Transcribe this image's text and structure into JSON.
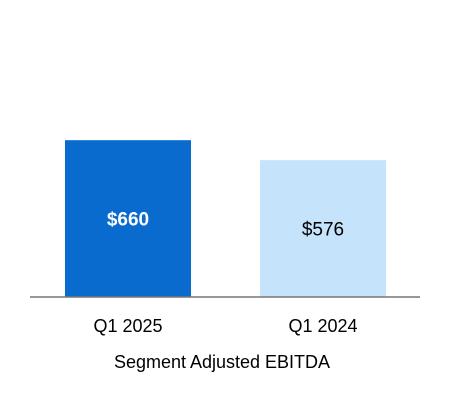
{
  "chart_data": {
    "type": "bar",
    "categories": [
      "Q1 2025",
      "Q1 2024"
    ],
    "values": [
      660,
      576
    ],
    "value_labels": [
      "$660",
      "$576"
    ],
    "title": "",
    "xlabel": "Segment Adjusted EBITDA",
    "ylabel": "",
    "ylim": [
      0,
      1250
    ],
    "grid": false,
    "legend": "none"
  },
  "colors": {
    "bars": [
      "#0a6bcf",
      "#c5e4fb"
    ],
    "value_label_colors": [
      "#ffffff",
      "#000000"
    ],
    "baseline": "#777777",
    "text": "#000000"
  }
}
